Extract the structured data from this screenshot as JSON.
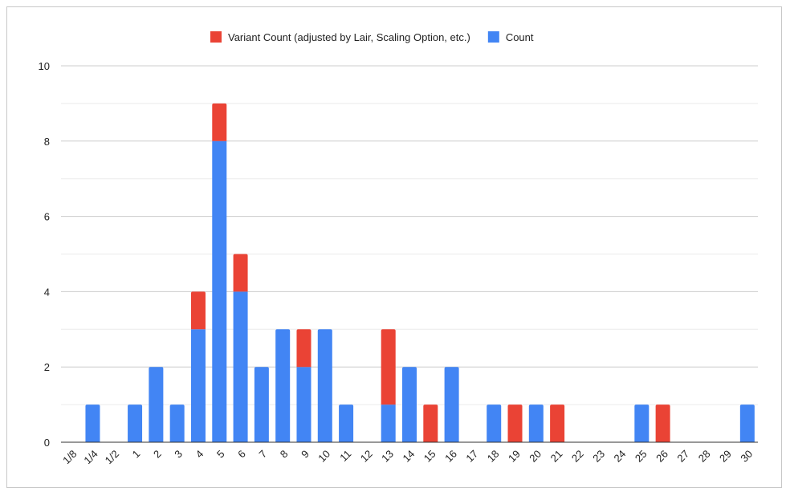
{
  "chart_data": {
    "type": "bar",
    "stacked": true,
    "title": "",
    "xlabel": "",
    "ylabel": "",
    "categories": [
      "1/8",
      "1/4",
      "1/2",
      "1",
      "2",
      "3",
      "4",
      "5",
      "6",
      "7",
      "8",
      "9",
      "10",
      "11",
      "12",
      "13",
      "14",
      "15",
      "16",
      "17",
      "18",
      "19",
      "20",
      "21",
      "22",
      "23",
      "24",
      "25",
      "26",
      "27",
      "28",
      "29",
      "30"
    ],
    "series": [
      {
        "name": "Count",
        "color": "#4285f4",
        "values": [
          0,
          1,
          0,
          1,
          2,
          1,
          3,
          8,
          4,
          2,
          3,
          2,
          3,
          1,
          0,
          1,
          2,
          0,
          2,
          0,
          1,
          0,
          1,
          0,
          0,
          0,
          0,
          1,
          0,
          0,
          0,
          0,
          1
        ]
      },
      {
        "name": "Variant Count (adjusted by Lair, Scaling Option, etc.)",
        "color": "#ea4335",
        "values": [
          0,
          0,
          0,
          0,
          0,
          0,
          1,
          1,
          1,
          0,
          0,
          1,
          0,
          0,
          0,
          2,
          0,
          1,
          0,
          0,
          0,
          1,
          0,
          1,
          0,
          0,
          0,
          0,
          1,
          0,
          0,
          0,
          0
        ]
      }
    ],
    "legend_order": [
      "Variant Count (adjusted by Lair, Scaling Option, etc.)",
      "Count"
    ],
    "legend_position": "top",
    "ylim": [
      0,
      10
    ],
    "yticks": [
      0,
      2,
      4,
      6,
      8,
      10
    ],
    "grid": true
  }
}
